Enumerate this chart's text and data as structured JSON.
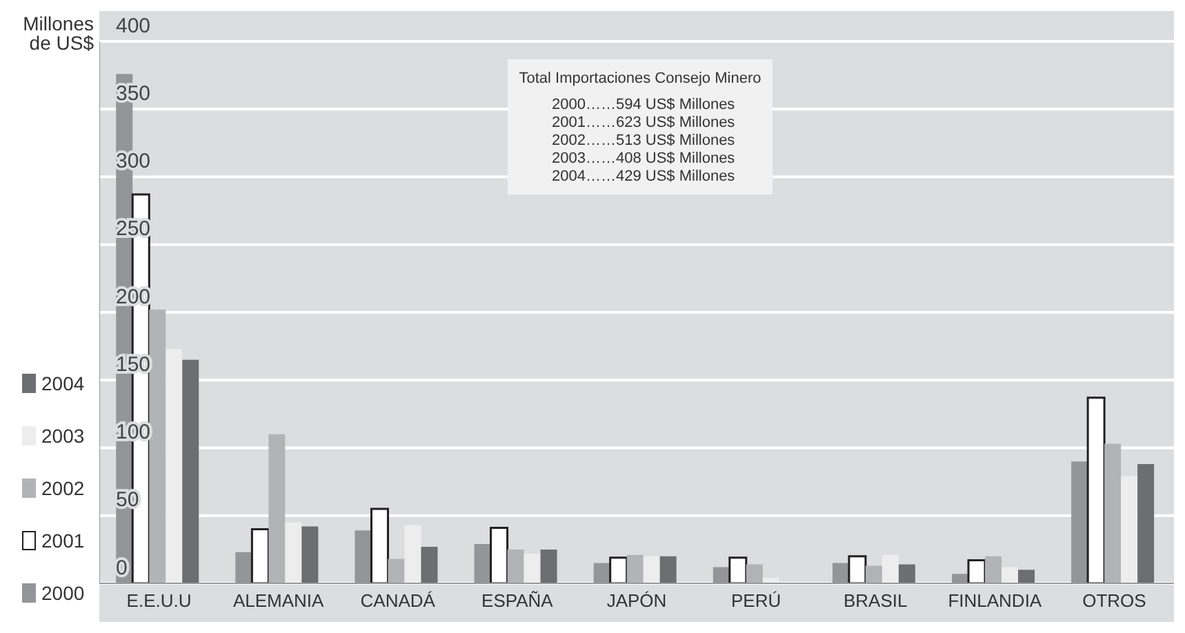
{
  "chart_data": {
    "type": "bar",
    "ylabel": "Millones de US$",
    "categories": [
      "E.E.U.U",
      "ALEMANIA",
      "CANADÁ",
      "ESPAÑA",
      "JAPÓN",
      "PERÚ",
      "BRASIL",
      "FINLANDIA",
      "OTROS"
    ],
    "series": [
      {
        "name": "2000",
        "color": "#939598",
        "values": [
          376,
          23,
          39,
          29,
          15,
          12,
          15,
          7,
          90
        ]
      },
      {
        "name": "2001",
        "color": "#ffffff",
        "values": [
          287,
          40,
          55,
          41,
          19,
          19,
          20,
          17,
          137
        ]
      },
      {
        "name": "2002",
        "color": "#b1b3b6",
        "values": [
          202,
          110,
          18,
          25,
          21,
          14,
          13,
          20,
          103
        ]
      },
      {
        "name": "2003",
        "color": "#ededee",
        "values": [
          173,
          45,
          43,
          22,
          20,
          4,
          21,
          12,
          79
        ]
      },
      {
        "name": "2004",
        "color": "#6d6e71",
        "values": [
          165,
          42,
          27,
          25,
          20,
          null,
          14,
          10,
          88
        ]
      }
    ],
    "ylim": [
      0,
      400
    ],
    "yticks": [
      0,
      50,
      100,
      150,
      200,
      250,
      300,
      350,
      400
    ],
    "grid": "y",
    "legend": "left",
    "annotations": [
      "Total Importaciones Consejo Minero",
      "2000……594 US$ Millones",
      "2001……623 US$ Millones",
      "2002……513 US$ Millones",
      "2003……408 US$ Millones",
      "2004……429 US$ Millones"
    ]
  }
}
